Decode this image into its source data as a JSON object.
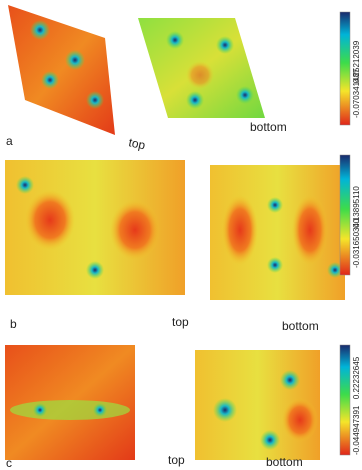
{
  "panels": [
    {
      "label": "a",
      "images": [
        {
          "caption": "top"
        },
        {
          "caption": "bottom"
        }
      ],
      "colorbar": {
        "max": "0.25212039",
        "min": "-0.070341487"
      }
    },
    {
      "label": "b",
      "images": [
        {
          "caption": "top"
        },
        {
          "caption": "bottom"
        }
      ],
      "colorbar": {
        "max": "0.13895110",
        "min": "-0.031650340"
      }
    },
    {
      "label": "c",
      "images": [
        {
          "caption": "top"
        },
        {
          "caption": "bottom"
        }
      ],
      "colorbar": {
        "max": "0.22232645",
        "min": "-0.044947391"
      }
    }
  ]
}
